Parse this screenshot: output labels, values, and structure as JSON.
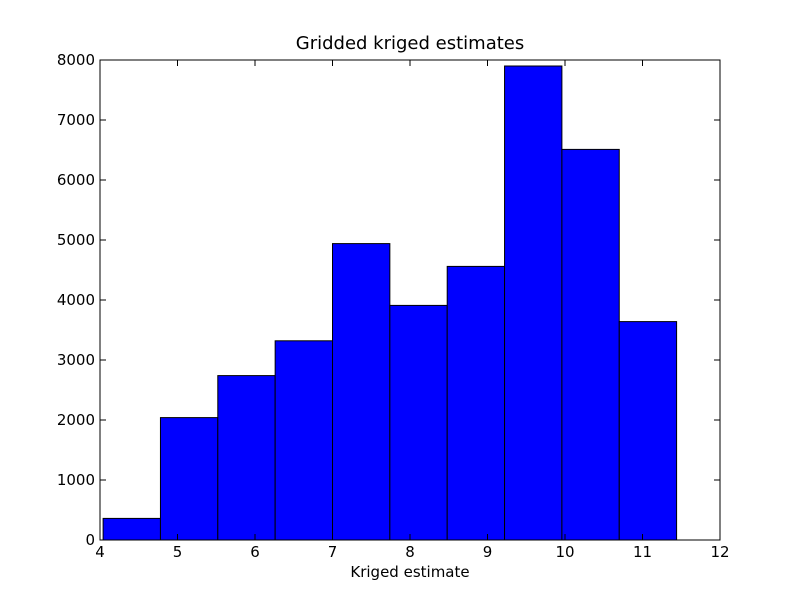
{
  "chart_data": {
    "type": "bar",
    "title": "Gridded kriged estimates",
    "xlabel": "Kriged estimate",
    "ylabel": "",
    "xlim": [
      4,
      12
    ],
    "ylim": [
      0,
      8000
    ],
    "xticks": [
      4,
      5,
      6,
      7,
      8,
      9,
      10,
      11,
      12
    ],
    "yticks": [
      0,
      1000,
      2000,
      3000,
      4000,
      5000,
      6000,
      7000,
      8000
    ],
    "bins": [
      {
        "left": 4.04,
        "right": 4.78,
        "count": 360
      },
      {
        "left": 4.78,
        "right": 5.52,
        "count": 2040
      },
      {
        "left": 5.52,
        "right": 6.26,
        "count": 2740
      },
      {
        "left": 6.26,
        "right": 7.0,
        "count": 3320
      },
      {
        "left": 7.0,
        "right": 7.74,
        "count": 4940
      },
      {
        "left": 7.74,
        "right": 8.48,
        "count": 3910
      },
      {
        "left": 8.48,
        "right": 9.22,
        "count": 4560
      },
      {
        "left": 9.22,
        "right": 9.96,
        "count": 7900
      },
      {
        "left": 9.96,
        "right": 10.7,
        "count": 6510
      },
      {
        "left": 10.7,
        "right": 11.44,
        "count": 3640
      }
    ],
    "grid": false,
    "bar_color": "#0000ff"
  }
}
